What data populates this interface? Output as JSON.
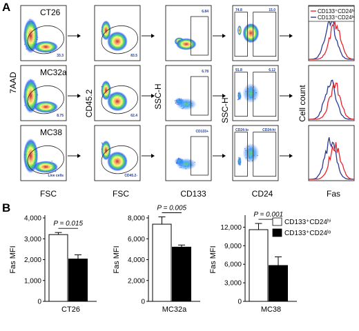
{
  "panel_a": {
    "letter": "A",
    "rows": [
      {
        "name": "CT26",
        "gates": [
          "33.3",
          "83.5",
          "6.84",
          "74.8",
          "15.0"
        ]
      },
      {
        "name": "MC32a",
        "gates": [
          "8.75",
          "62.4",
          "6.78",
          "91.8",
          "6.12"
        ]
      },
      {
        "name": "MC38",
        "gates": [
          "Live cells",
          "CD45.2-",
          "CD133+",
          "CD24-lo",
          "CD24-hi"
        ]
      }
    ],
    "axes": {
      "c1_y": "7AAD",
      "c1_x": "FSC",
      "c2_y": "CD45.2",
      "c2_x": "FSC",
      "c3_y": "SSC-H",
      "c3_x": "CD133",
      "c4_y": "SSC-H",
      "c4_x": "CD24",
      "c5_y": "Cell count",
      "c5_x": "Fas"
    },
    "legend": [
      {
        "label": "CD133⁺CD24ʰⁱ",
        "color": "#e8232a"
      },
      {
        "label": "CD133⁺CD24ˡᵒ",
        "color": "#2b3990"
      }
    ]
  },
  "panel_b": {
    "letter": "B",
    "legend": [
      {
        "label": "CD133⁺CD24ʰⁱ",
        "fill": "#ffffff"
      },
      {
        "label": "CD133⁺CD24ˡᵒ",
        "fill": "#000000"
      }
    ]
  },
  "chart_data": [
    {
      "type": "bar",
      "title": "",
      "xlabel": "CT26",
      "ylabel": "Fas MFI",
      "ylim": [
        0,
        4000
      ],
      "yticks": [
        "0",
        "1,000",
        "2,000",
        "3,000",
        "4,000"
      ],
      "categories": [
        "CD133⁺CD24ʰⁱ",
        "CD133⁺CD24ˡᵒ"
      ],
      "values": [
        3200,
        2030
      ],
      "errors": [
        100,
        200
      ],
      "annotation": "P = 0.015"
    },
    {
      "type": "bar",
      "title": "",
      "xlabel": "MC32a",
      "ylabel": "Fas MFI",
      "ylim": [
        0,
        8000
      ],
      "yticks": [
        "0",
        "2,000",
        "4,000",
        "6,000",
        "8,000"
      ],
      "categories": [
        "CD133⁺CD24ʰⁱ",
        "CD133⁺CD24ˡᵒ"
      ],
      "values": [
        7400,
        5200
      ],
      "errors": [
        700,
        200
      ],
      "annotation": "P = 0.005"
    },
    {
      "type": "bar",
      "title": "",
      "xlabel": "MC38",
      "ylabel": "Fas MFI",
      "ylim": [
        0,
        13500
      ],
      "yticks": [
        "0",
        "3,000",
        "6,000",
        "9,000",
        "12,000"
      ],
      "tickvals": [
        0,
        3000,
        6000,
        9000,
        12000
      ],
      "categories": [
        "CD133⁺CD24ʰⁱ",
        "CD133⁺CD24ˡᵒ"
      ],
      "values": [
        11600,
        5800
      ],
      "errors": [
        1000,
        1400
      ],
      "annotation": "P = 0.001"
    }
  ]
}
